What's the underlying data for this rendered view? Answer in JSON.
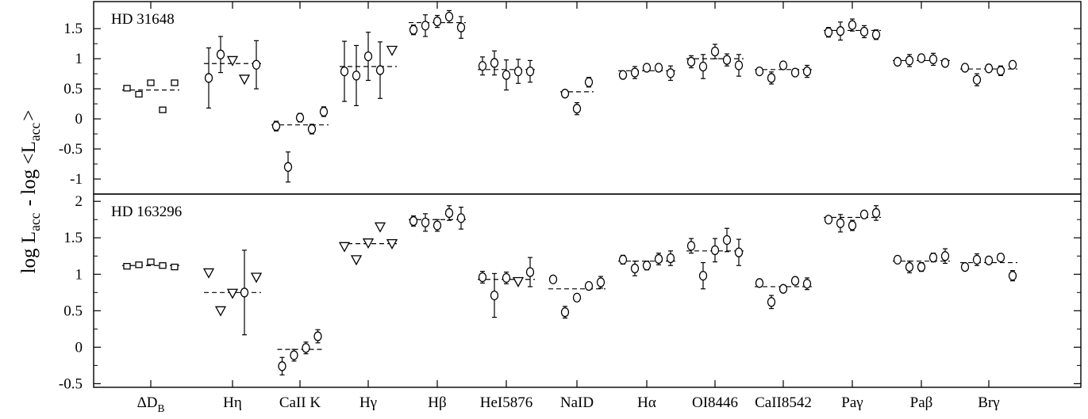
{
  "chart_data": {
    "type": "scatter",
    "ylabel": "log L_acc - log <L_acc>",
    "grid": false,
    "categories": [
      "ΔD_B",
      "Hη",
      "CaII K",
      "Hγ",
      "Hβ",
      "HeI5876",
      "NaID",
      "Hα",
      "OI8446",
      "CaII8542",
      "Paγ",
      "Paβ",
      "Brγ"
    ],
    "panels": [
      {
        "label": "HD 31648",
        "ylim": [
          -1.25,
          1.95
        ],
        "yticks": [
          -1,
          -0.5,
          0,
          0.5,
          1,
          1.5
        ],
        "ytick_labels": [
          "-1",
          "-0.5",
          "0",
          "0.5",
          "1",
          "1.5"
        ],
        "groups": [
          {
            "category": "ΔD_B",
            "mean": 0.48,
            "points": [
              {
                "y": 0.51,
                "err": 0.03,
                "marker": "square"
              },
              {
                "y": 0.41,
                "err": 0.03,
                "marker": "square"
              },
              {
                "y": 0.6,
                "err": 0.03,
                "marker": "square"
              },
              {
                "y": 0.15,
                "err": 0.03,
                "marker": "square"
              },
              {
                "y": 0.6,
                "err": 0.03,
                "marker": "square"
              }
            ]
          },
          {
            "category": "Hη",
            "mean": 0.92,
            "points": [
              {
                "y": 0.68,
                "err": 0.5,
                "marker": "circle"
              },
              {
                "y": 1.07,
                "err": 0.3,
                "marker": "circle"
              },
              {
                "y": 0.97,
                "marker": "triangle"
              },
              {
                "y": 0.66,
                "marker": "triangle"
              },
              {
                "y": 0.9,
                "err": 0.4,
                "marker": "circle"
              }
            ]
          },
          {
            "category": "CaII K",
            "mean": -0.1,
            "points": [
              {
                "y": -0.12,
                "err": 0.08,
                "marker": "circle"
              },
              {
                "y": -0.8,
                "err": 0.25,
                "marker": "circle"
              },
              {
                "y": 0.02,
                "err": 0.07,
                "marker": "circle"
              },
              {
                "y": -0.17,
                "err": 0.08,
                "marker": "circle"
              },
              {
                "y": 0.12,
                "err": 0.08,
                "marker": "circle"
              }
            ]
          },
          {
            "category": "Hγ",
            "mean": 0.87,
            "points": [
              {
                "y": 0.79,
                "err": 0.5,
                "marker": "circle"
              },
              {
                "y": 0.72,
                "err": 0.5,
                "marker": "circle"
              },
              {
                "y": 1.04,
                "err": 0.4,
                "marker": "circle"
              },
              {
                "y": 0.81,
                "err": 0.47,
                "marker": "circle"
              },
              {
                "y": 1.14,
                "marker": "triangle"
              }
            ]
          },
          {
            "category": "Hβ",
            "mean": 1.6,
            "points": [
              {
                "y": 1.48,
                "err": 0.08,
                "marker": "circle"
              },
              {
                "y": 1.55,
                "err": 0.18,
                "marker": "circle"
              },
              {
                "y": 1.62,
                "err": 0.1,
                "marker": "circle"
              },
              {
                "y": 1.7,
                "err": 0.1,
                "marker": "circle"
              },
              {
                "y": 1.52,
                "err": 0.18,
                "marker": "circle"
              }
            ]
          },
          {
            "category": "HeI5876",
            "mean": 0.82,
            "points": [
              {
                "y": 0.88,
                "err": 0.15,
                "marker": "circle"
              },
              {
                "y": 0.93,
                "err": 0.2,
                "marker": "circle"
              },
              {
                "y": 0.73,
                "err": 0.25,
                "marker": "circle"
              },
              {
                "y": 0.79,
                "err": 0.2,
                "marker": "circle"
              },
              {
                "y": 0.79,
                "err": 0.18,
                "marker": "circle"
              }
            ]
          },
          {
            "category": "NaID",
            "mean": 0.45,
            "points": [
              {
                "y": 0.42,
                "err": 0.04,
                "marker": "circle"
              },
              {
                "y": 0.17,
                "err": 0.1,
                "marker": "circle"
              },
              {
                "y": 0.61,
                "err": 0.08,
                "marker": "circle"
              }
            ]
          },
          {
            "category": "Hα",
            "mean": 0.8,
            "points": [
              {
                "y": 0.73,
                "err": 0.05,
                "marker": "circle"
              },
              {
                "y": 0.77,
                "err": 0.1,
                "marker": "circle"
              },
              {
                "y": 0.85,
                "err": 0.05,
                "marker": "circle"
              },
              {
                "y": 0.85,
                "err": 0.06,
                "marker": "circle"
              },
              {
                "y": 0.76,
                "err": 0.12,
                "marker": "circle"
              }
            ]
          },
          {
            "category": "OI8446",
            "mean": 1.0,
            "points": [
              {
                "y": 0.95,
                "err": 0.1,
                "marker": "circle"
              },
              {
                "y": 0.87,
                "err": 0.2,
                "marker": "circle"
              },
              {
                "y": 1.12,
                "err": 0.12,
                "marker": "circle"
              },
              {
                "y": 0.98,
                "err": 0.1,
                "marker": "circle"
              },
              {
                "y": 0.89,
                "err": 0.18,
                "marker": "circle"
              }
            ]
          },
          {
            "category": "CaII8542",
            "mean": 0.82,
            "points": [
              {
                "y": 0.79,
                "err": 0.04,
                "marker": "circle"
              },
              {
                "y": 0.68,
                "err": 0.1,
                "marker": "circle"
              },
              {
                "y": 0.89,
                "err": 0.05,
                "marker": "circle"
              },
              {
                "y": 0.77,
                "err": 0.05,
                "marker": "circle"
              },
              {
                "y": 0.79,
                "err": 0.1,
                "marker": "circle"
              }
            ]
          },
          {
            "category": "Paγ",
            "mean": 1.47,
            "points": [
              {
                "y": 1.44,
                "err": 0.08,
                "marker": "circle"
              },
              {
                "y": 1.46,
                "err": 0.15,
                "marker": "circle"
              },
              {
                "y": 1.56,
                "err": 0.1,
                "marker": "circle"
              },
              {
                "y": 1.45,
                "err": 0.1,
                "marker": "circle"
              },
              {
                "y": 1.4,
                "err": 0.08,
                "marker": "circle"
              }
            ]
          },
          {
            "category": "Paβ",
            "mean": 0.97,
            "points": [
              {
                "y": 0.95,
                "err": 0.05,
                "marker": "circle"
              },
              {
                "y": 0.97,
                "err": 0.1,
                "marker": "circle"
              },
              {
                "y": 1.01,
                "err": 0.06,
                "marker": "circle"
              },
              {
                "y": 0.99,
                "err": 0.1,
                "marker": "circle"
              },
              {
                "y": 0.93,
                "err": 0.05,
                "marker": "circle"
              }
            ]
          },
          {
            "category": "Brγ",
            "mean": 0.83,
            "points": [
              {
                "y": 0.85,
                "err": 0.03,
                "marker": "circle"
              },
              {
                "y": 0.65,
                "err": 0.1,
                "marker": "circle"
              },
              {
                "y": 0.84,
                "err": 0.03,
                "marker": "circle"
              },
              {
                "y": 0.8,
                "err": 0.08,
                "marker": "circle"
              },
              {
                "y": 0.9,
                "err": 0.04,
                "marker": "circle"
              }
            ]
          }
        ]
      },
      {
        "label": "HD 163296",
        "ylim": [
          -0.55,
          2.1
        ],
        "yticks": [
          -0.5,
          0,
          0.5,
          1,
          1.5,
          2
        ],
        "ytick_labels": [
          "-0.5",
          "0",
          "0.5",
          "1",
          "1.5",
          "2"
        ],
        "groups": [
          {
            "category": "ΔD_B",
            "mean": 1.12,
            "points": [
              {
                "y": 1.11,
                "err": 0.03,
                "marker": "square"
              },
              {
                "y": 1.13,
                "err": 0.03,
                "marker": "square"
              },
              {
                "y": 1.17,
                "err": 0.03,
                "marker": "square"
              },
              {
                "y": 1.12,
                "err": 0.03,
                "marker": "square"
              },
              {
                "y": 1.1,
                "err": 0.03,
                "marker": "square"
              }
            ]
          },
          {
            "category": "Hη",
            "mean": 0.75,
            "points": [
              {
                "y": 1.02,
                "marker": "triangle"
              },
              {
                "y": 0.5,
                "marker": "triangle"
              },
              {
                "y": 0.74,
                "marker": "triangle"
              },
              {
                "y": 0.75,
                "err": 0.58,
                "marker": "circle"
              },
              {
                "y": 0.96,
                "marker": "triangle"
              }
            ]
          },
          {
            "category": "CaII K",
            "mean": -0.03,
            "points": [
              {
                "y": -0.26,
                "err": 0.12,
                "marker": "circle"
              },
              {
                "y": -0.11,
                "err": 0.08,
                "marker": "circle"
              },
              {
                "y": -0.01,
                "err": 0.08,
                "marker": "circle"
              },
              {
                "y": 0.15,
                "err": 0.09,
                "marker": "circle"
              }
            ]
          },
          {
            "category": "Hγ",
            "mean": 1.42,
            "points": [
              {
                "y": 1.38,
                "marker": "triangle"
              },
              {
                "y": 1.2,
                "marker": "triangle"
              },
              {
                "y": 1.43,
                "marker": "triangle"
              },
              {
                "y": 1.65,
                "marker": "triangle"
              },
              {
                "y": 1.42,
                "marker": "triangle"
              }
            ]
          },
          {
            "category": "Hβ",
            "mean": 1.75,
            "points": [
              {
                "y": 1.73,
                "err": 0.07,
                "marker": "circle"
              },
              {
                "y": 1.71,
                "err": 0.12,
                "marker": "circle"
              },
              {
                "y": 1.67,
                "err": 0.08,
                "marker": "circle"
              },
              {
                "y": 1.84,
                "err": 0.1,
                "marker": "circle"
              },
              {
                "y": 1.77,
                "err": 0.15,
                "marker": "circle"
              }
            ]
          },
          {
            "category": "HeI5876",
            "mean": 0.93,
            "points": [
              {
                "y": 0.96,
                "err": 0.08,
                "marker": "circle"
              },
              {
                "y": 0.71,
                "err": 0.3,
                "marker": "circle"
              },
              {
                "y": 0.95,
                "err": 0.08,
                "marker": "circle"
              },
              {
                "y": 0.9,
                "marker": "triangle"
              },
              {
                "y": 1.03,
                "err": 0.2,
                "marker": "circle"
              }
            ]
          },
          {
            "category": "NaID",
            "mean": 0.8,
            "points": [
              {
                "y": 0.93,
                "err": 0.03,
                "marker": "circle"
              },
              {
                "y": 0.48,
                "err": 0.08,
                "marker": "circle"
              },
              {
                "y": 0.68,
                "err": 0.05,
                "marker": "circle"
              },
              {
                "y": 0.84,
                "err": 0.04,
                "marker": "circle"
              },
              {
                "y": 0.89,
                "err": 0.08,
                "marker": "circle"
              }
            ]
          },
          {
            "category": "Hα",
            "mean": 1.18,
            "points": [
              {
                "y": 1.2,
                "err": 0.06,
                "marker": "circle"
              },
              {
                "y": 1.08,
                "err": 0.1,
                "marker": "circle"
              },
              {
                "y": 1.12,
                "err": 0.06,
                "marker": "circle"
              },
              {
                "y": 1.21,
                "err": 0.08,
                "marker": "circle"
              },
              {
                "y": 1.22,
                "err": 0.1,
                "marker": "circle"
              }
            ]
          },
          {
            "category": "OI8446",
            "mean": 1.32,
            "points": [
              {
                "y": 1.39,
                "err": 0.1,
                "marker": "circle"
              },
              {
                "y": 0.98,
                "err": 0.18,
                "marker": "circle"
              },
              {
                "y": 1.33,
                "err": 0.16,
                "marker": "circle"
              },
              {
                "y": 1.47,
                "err": 0.16,
                "marker": "circle"
              },
              {
                "y": 1.3,
                "err": 0.18,
                "marker": "circle"
              }
            ]
          },
          {
            "category": "CaII8542",
            "mean": 0.83,
            "points": [
              {
                "y": 0.88,
                "err": 0.04,
                "marker": "circle"
              },
              {
                "y": 0.62,
                "err": 0.09,
                "marker": "circle"
              },
              {
                "y": 0.8,
                "err": 0.04,
                "marker": "circle"
              },
              {
                "y": 0.91,
                "err": 0.05,
                "marker": "circle"
              },
              {
                "y": 0.87,
                "err": 0.08,
                "marker": "circle"
              }
            ]
          },
          {
            "category": "Paγ",
            "mean": 1.78,
            "points": [
              {
                "y": 1.75,
                "err": 0.05,
                "marker": "circle"
              },
              {
                "y": 1.7,
                "err": 0.12,
                "marker": "circle"
              },
              {
                "y": 1.67,
                "err": 0.07,
                "marker": "circle"
              },
              {
                "y": 1.82,
                "err": 0.05,
                "marker": "circle"
              },
              {
                "y": 1.84,
                "err": 0.1,
                "marker": "circle"
              }
            ]
          },
          {
            "category": "Paβ",
            "mean": 1.18,
            "points": [
              {
                "y": 1.2,
                "err": 0.04,
                "marker": "circle"
              },
              {
                "y": 1.1,
                "err": 0.08,
                "marker": "circle"
              },
              {
                "y": 1.1,
                "err": 0.06,
                "marker": "circle"
              },
              {
                "y": 1.23,
                "err": 0.06,
                "marker": "circle"
              },
              {
                "y": 1.25,
                "err": 0.1,
                "marker": "circle"
              }
            ]
          },
          {
            "category": "Brγ",
            "mean": 1.16,
            "points": [
              {
                "y": 1.1,
                "err": 0.03,
                "marker": "circle"
              },
              {
                "y": 1.2,
                "err": 0.08,
                "marker": "circle"
              },
              {
                "y": 1.19,
                "err": 0.04,
                "marker": "circle"
              },
              {
                "y": 1.23,
                "err": 0.04,
                "marker": "circle"
              },
              {
                "y": 0.98,
                "err": 0.07,
                "marker": "circle"
              }
            ]
          }
        ]
      }
    ]
  }
}
